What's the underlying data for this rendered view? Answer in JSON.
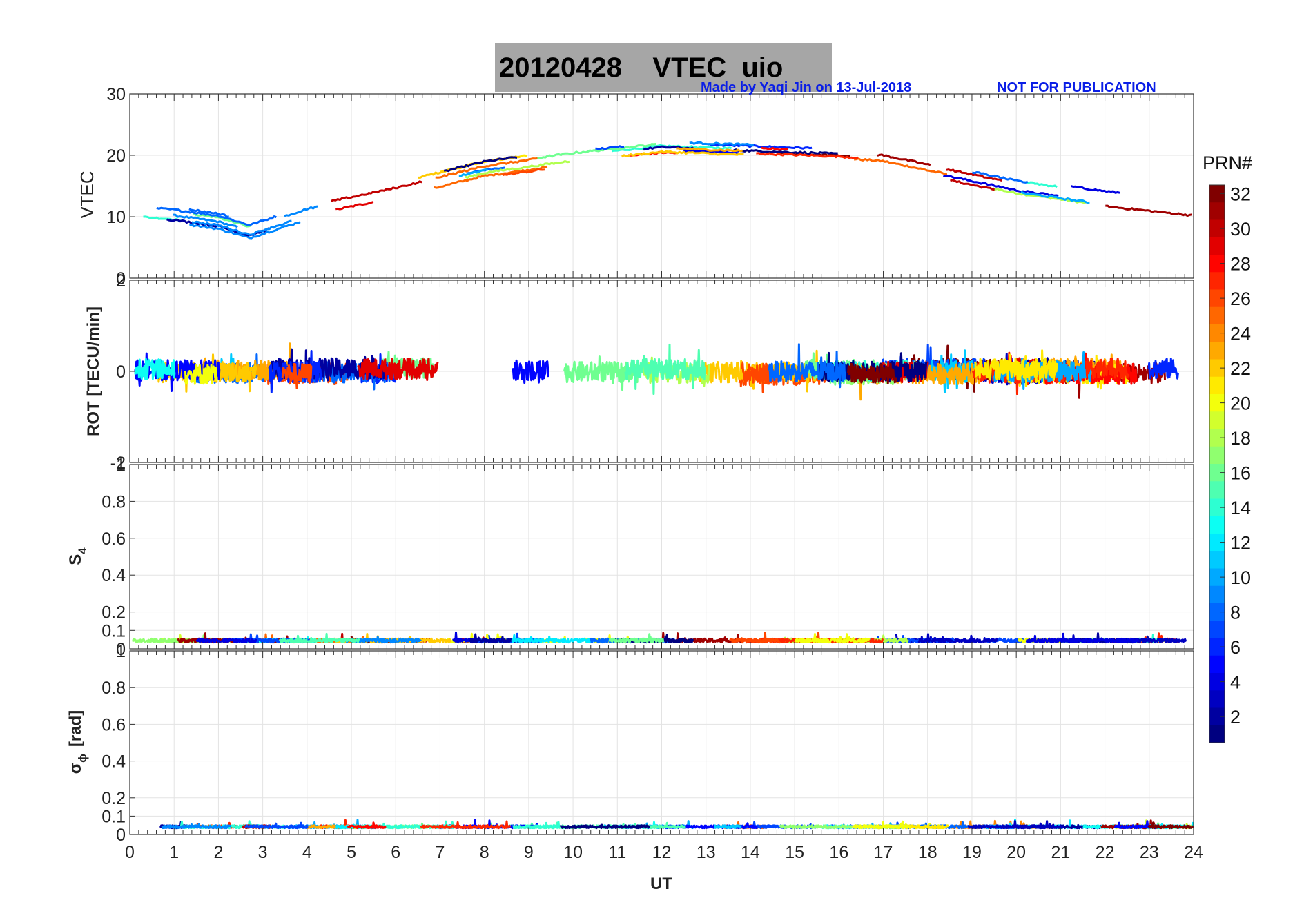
{
  "title": "20120428    VTEC  uio",
  "credit_left": "Made by Yaqi Jin on 13-Jul-2018",
  "credit_right": "NOT FOR PUBLICATION",
  "colorbar": {
    "label": "PRN#",
    "ticks": [
      "2",
      "4",
      "6",
      "8",
      "10",
      "12",
      "14",
      "16",
      "18",
      "20",
      "22",
      "24",
      "26",
      "28",
      "30",
      "32"
    ],
    "min": 1,
    "max": 32
  },
  "chart_data": [
    {
      "type": "line",
      "panel": "vtec",
      "ylabel": "VTEC",
      "xlim": [
        0,
        24
      ],
      "ylim": [
        0,
        30
      ],
      "yticks": [
        "10",
        "20",
        "30"
      ],
      "bottom_tick": "0",
      "series_shape": "diurnal curve: ~11 at 0 UT, minimum ~8 near 2.5 UT, rising to ~21 at 12 UT, staying ~20 until 17 UT, falling to ~11-12 at 24 UT",
      "color_by": "PRN"
    },
    {
      "type": "line",
      "panel": "rot",
      "ylabel": "ROT [TECU/min]",
      "xlim": [
        0,
        24
      ],
      "ylim": [
        -2,
        2
      ],
      "yticks": [
        "-2",
        "0",
        "2"
      ],
      "overlap_ticks": [
        "2",
        "-1"
      ],
      "series_shape": "noisy values within about -0.5 to +0.6 around 0",
      "color_by": "PRN"
    },
    {
      "type": "line",
      "panel": "s4",
      "ylabel": "S",
      "ylabel_sub": "4",
      "xlim": [
        0,
        24
      ],
      "ylim": [
        0,
        1
      ],
      "yticks": [
        "0",
        "0.1",
        "0.2",
        "0.4",
        "0.6",
        "0.8",
        "1"
      ],
      "series_shape": "low values around 0.03-0.06, peaks near 0.1",
      "color_by": "PRN"
    },
    {
      "type": "line",
      "panel": "sigma",
      "ylabel": "σ",
      "ylabel_sub": "ϕ",
      "ylabel_unit": "[rad]",
      "xlabel": "UT",
      "xlim": [
        0,
        24
      ],
      "ylim": [
        0,
        1
      ],
      "xticks": [
        "0",
        "1",
        "2",
        "3",
        "4",
        "5",
        "6",
        "7",
        "8",
        "9",
        "10",
        "11",
        "12",
        "13",
        "14",
        "15",
        "16",
        "17",
        "18",
        "19",
        "20",
        "21",
        "22",
        "23",
        "24"
      ],
      "yticks": [
        "0",
        "0.1",
        "0.2",
        "0.4",
        "0.6",
        "0.8",
        "1"
      ],
      "series_shape": "low values around 0.03-0.06, peaks near 0.09",
      "color_by": "PRN"
    }
  ]
}
